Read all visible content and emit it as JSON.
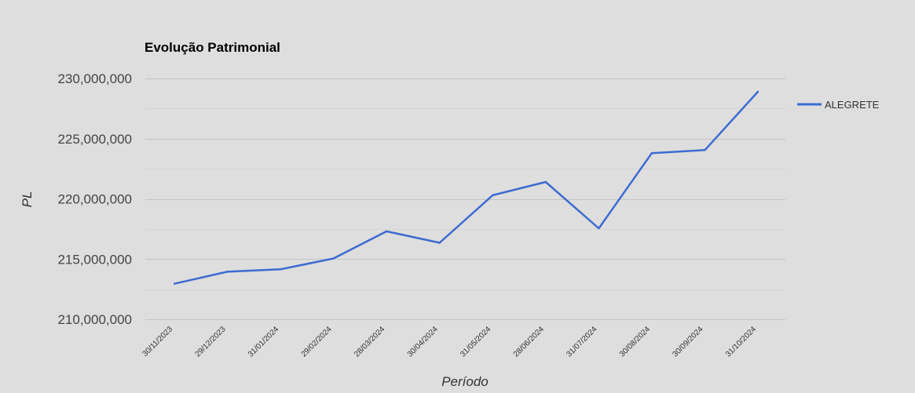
{
  "chart_data": {
    "type": "line",
    "title": "Evolução Patrimonial",
    "xlabel": "Período",
    "ylabel": "PL",
    "categories": [
      "30/11/2023",
      "29/12/2023",
      "31/01/2024",
      "29/02/2024",
      "28/03/2024",
      "30/04/2024",
      "31/05/2024",
      "28/06/2024",
      "31/07/2024",
      "30/08/2024",
      "30/09/2024",
      "31/10/2024"
    ],
    "series": [
      {
        "name": "ALEGRETE",
        "color": "#3d6bd1",
        "values": [
          212950000,
          213950000,
          214150000,
          215050000,
          217300000,
          216350000,
          220300000,
          221400000,
          217550000,
          223800000,
          224050000,
          228900000
        ]
      }
    ],
    "ylim": [
      209000000,
      230000000
    ],
    "yticks": [
      210000000,
      215000000,
      220000000,
      225000000,
      230000000
    ],
    "ytick_labels": [
      "210,000,000",
      "215,000,000",
      "220,000,000",
      "225,000,000",
      "230,000,000"
    ],
    "grid": true,
    "legend_position": "right"
  }
}
